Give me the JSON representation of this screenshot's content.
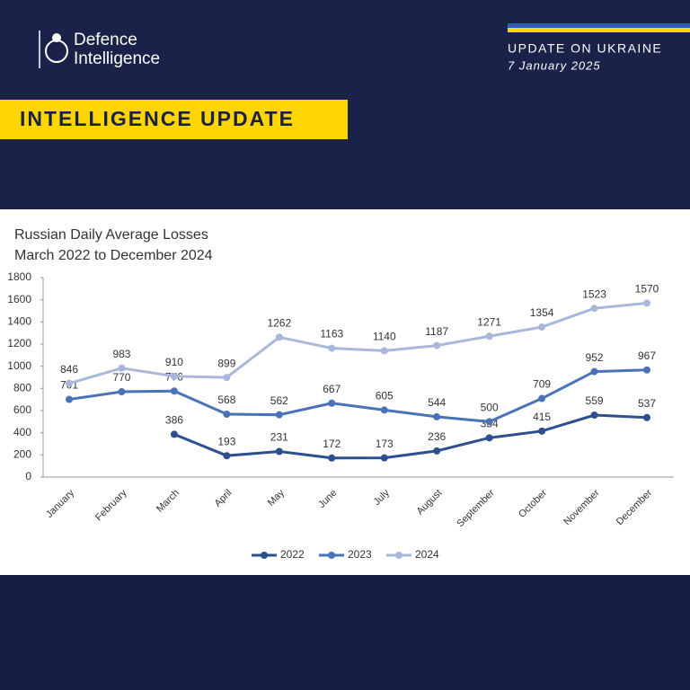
{
  "header": {
    "brand_line1": "Defence",
    "brand_line2": "Intelligence",
    "update_title": "UPDATE ON UKRAINE",
    "date": "7 January 2025",
    "banner": "INTELLIGENCE UPDATE"
  },
  "chart_data": {
    "type": "line",
    "title": "Russian Daily Average Losses",
    "subtitle": "March 2022 to December 2024",
    "categories": [
      "January",
      "February",
      "March",
      "April",
      "May",
      "June",
      "July",
      "August",
      "September",
      "October",
      "November",
      "December"
    ],
    "series": [
      {
        "name": "2022",
        "color": "#2d4f8e",
        "values": [
          null,
          null,
          386,
          193,
          231,
          172,
          173,
          236,
          354,
          415,
          559,
          537
        ]
      },
      {
        "name": "2023",
        "color": "#4a72b8",
        "values": [
          701,
          770,
          776,
          568,
          562,
          667,
          605,
          544,
          500,
          709,
          952,
          967
        ]
      },
      {
        "name": "2024",
        "color": "#a9b8da",
        "values": [
          846,
          983,
          910,
          899,
          1262,
          1163,
          1140,
          1187,
          1271,
          1354,
          1523,
          1570
        ]
      }
    ],
    "ylim": [
      0,
      1800
    ],
    "yticks": [
      0,
      200,
      400,
      600,
      800,
      1000,
      1200,
      1400,
      1600,
      1800
    ],
    "grid": false,
    "legend": "bottom"
  }
}
